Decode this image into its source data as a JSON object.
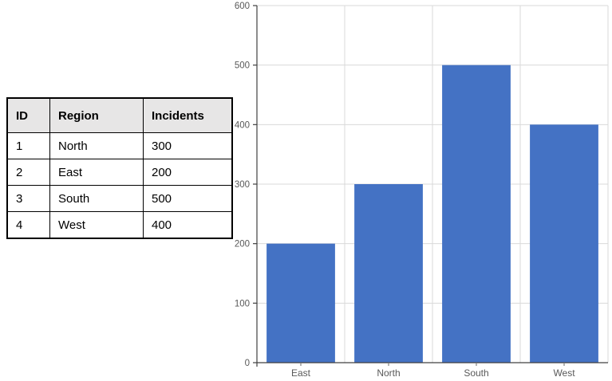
{
  "table": {
    "headers": [
      "ID",
      "Region",
      "Incidents"
    ],
    "rows": [
      {
        "id": "1",
        "region": "North",
        "incidents": "300"
      },
      {
        "id": "2",
        "region": "East",
        "incidents": "200"
      },
      {
        "id": "3",
        "region": "South",
        "incidents": "500"
      },
      {
        "id": "4",
        "region": "West",
        "incidents": "400"
      }
    ]
  },
  "chart_data": {
    "type": "bar",
    "categories": [
      "East",
      "North",
      "South",
      "West"
    ],
    "values": [
      200,
      300,
      500,
      400
    ],
    "title": "",
    "xlabel": "",
    "ylabel": "",
    "ylim": [
      0,
      600
    ],
    "ytick_interval": 100,
    "grid": true,
    "legend": false,
    "bar_color": "#4472C4",
    "gridline_color": "#D9D9D9",
    "axis_color": "#404040",
    "tick_color": "#808080",
    "tick_label_color": "#595959"
  }
}
